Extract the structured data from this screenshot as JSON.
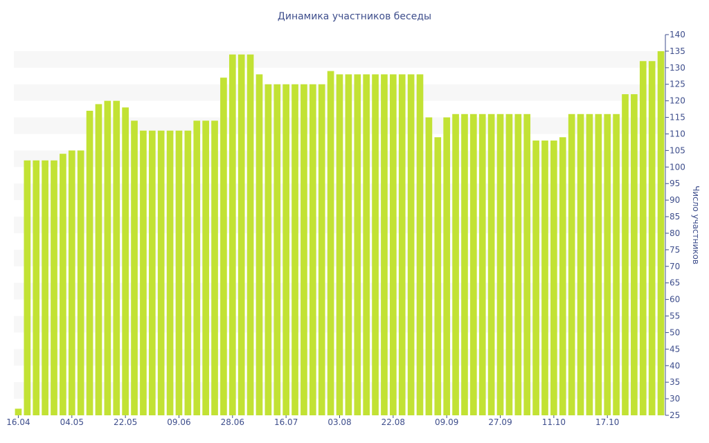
{
  "chart_data": {
    "type": "bar",
    "title": "Динамика участников беседы",
    "ylabel": "Число участников",
    "xlabel": "",
    "ylim": [
      25,
      140
    ],
    "y_ticks": [
      25,
      30,
      35,
      40,
      45,
      50,
      55,
      60,
      65,
      70,
      75,
      80,
      85,
      90,
      95,
      100,
      105,
      110,
      115,
      120,
      125,
      130,
      135,
      140
    ],
    "y_axis_side": "right",
    "grid": "alternating horizontal bands",
    "x_tick_labels": [
      {
        "index": 0,
        "label": "16.04"
      },
      {
        "index": 6,
        "label": "04.05"
      },
      {
        "index": 12,
        "label": "22.05"
      },
      {
        "index": 18,
        "label": "09.06"
      },
      {
        "index": 24,
        "label": "28.06"
      },
      {
        "index": 30,
        "label": "16.07"
      },
      {
        "index": 36,
        "label": "03.08"
      },
      {
        "index": 42,
        "label": "22.08"
      },
      {
        "index": 48,
        "label": "09.09"
      },
      {
        "index": 54,
        "label": "27.09"
      },
      {
        "index": 60,
        "label": "11.10"
      },
      {
        "index": 66,
        "label": "17.10"
      }
    ],
    "bar_color": "#c2e234",
    "band_color": "#f7f7f7",
    "text_color": "#3e4e8c",
    "values": [
      27,
      102,
      102,
      102,
      102,
      104,
      105,
      105,
      117,
      119,
      120,
      120,
      118,
      114,
      111,
      111,
      111,
      111,
      111,
      111,
      114,
      114,
      114,
      127,
      134,
      134,
      134,
      128,
      125,
      125,
      125,
      125,
      125,
      125,
      125,
      129,
      128,
      128,
      128,
      128,
      128,
      128,
      128,
      128,
      128,
      128,
      115,
      109,
      115,
      116,
      116,
      116,
      116,
      116,
      116,
      116,
      116,
      116,
      108,
      108,
      108,
      109,
      116,
      116,
      116,
      116,
      116,
      116,
      122,
      122,
      132,
      132,
      135
    ]
  }
}
